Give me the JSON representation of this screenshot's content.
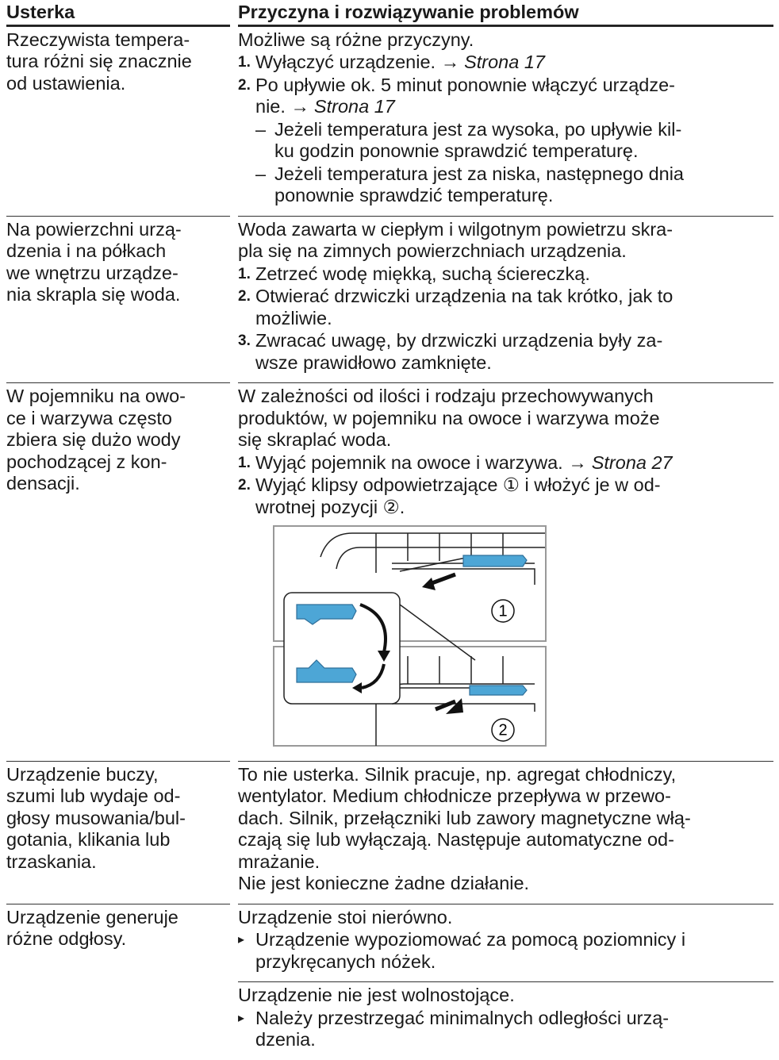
{
  "table": {
    "headers": [
      "Usterka",
      "Przyczyna i rozwiązywanie problemów"
    ],
    "rows": [
      {
        "fault": [
          "Rzeczywista tempera-",
          "tura różni się znacznie",
          "od ustawienia."
        ],
        "blocks": [
          {
            "items": [
              {
                "lines": [
                  "Możliwe są różne przyczyny."
                ]
              },
              {
                "number": "1.",
                "lines": [
                  {
                    "text": "Wyłączyć urządzenie. →",
                    "link": "Strona 17"
                  }
                ]
              },
              {
                "number": "2.",
                "lines": [
                  "Po upływie ok. 5 minut ponownie włączyć urządze-",
                  {
                    "text": "nie. →",
                    "link": "Strona 17"
                  }
                ]
              },
              {
                "bullet": "–",
                "lines": [
                  "Jeżeli temperatura jest za wysoka, po upływie kil-",
                  "ku godzin ponownie sprawdzić temperaturę."
                ]
              },
              {
                "bullet": "–",
                "lines": [
                  "Jeżeli temperatura jest za niska, następnego dnia",
                  "ponownie sprawdzić temperaturę."
                ]
              }
            ]
          }
        ]
      },
      {
        "fault": [
          "Na powierzchni urzą-",
          "dzenia i na półkach",
          "we wnętrzu urządze-",
          "nia skrapla się woda."
        ],
        "blocks": [
          {
            "items": [
              {
                "lines": [
                  "Woda zawarta w ciepłym i wilgotnym powietrzu skra-",
                  "pla się na zimnych powierzchniach urządzenia."
                ]
              },
              {
                "number": "1.",
                "lines": [
                  "Zetrzeć wodę miękką, suchą ściereczką."
                ]
              },
              {
                "number": "2.",
                "lines": [
                  "Otwierać drzwiczki urządzenia na tak krótko, jak to",
                  "możliwie."
                ]
              },
              {
                "number": "3.",
                "lines": [
                  "Zwracać uwagę, by drzwiczki urządzenia były za-",
                  "wsze prawidłowo zamknięte."
                ]
              }
            ]
          }
        ]
      },
      {
        "fault": [
          "W pojemniku na owo-",
          "ce i warzywa często",
          "zbiera się dużo wody",
          "pochodzącej z kon-",
          "densacji."
        ],
        "blocks": [
          {
            "items": [
              {
                "lines": [
                  "W zależności od ilości i rodzaju przechowywanych",
                  "produktów, w pojemniku na owoce i warzywa może",
                  "się skraplać woda."
                ]
              },
              {
                "number": "1.",
                "lines": [
                  {
                    "text": "Wyjąć pojemnik na owoce i warzywa. →",
                    "link": "Strona 27"
                  }
                ]
              },
              {
                "number": "2.",
                "lines": [
                  "Wyjąć klipsy odpowietrzające ① i włożyć je w od-",
                  "wrotnej pozycji ②."
                ]
              }
            ],
            "figure": {
              "labels": [
                "1",
                "2"
              ]
            }
          }
        ]
      },
      {
        "fault": [
          "Urządzenie buczy,",
          "szumi lub wydaje od-",
          "głosy musowania/bul-",
          "gotania, klikania lub",
          "trzaskania."
        ],
        "blocks": [
          {
            "items": [
              {
                "lines": [
                  "To nie usterka. Silnik pracuje, np. agregat chłodniczy,",
                  "wentylator. Medium chłodnicze przepływa w przewo-",
                  "dach. Silnik, przełączniki lub zawory magnetyczne włą-",
                  "czają się lub wyłączają. Następuje automatyczne od-",
                  "mrażanie.",
                  "Nie jest konieczne żadne działanie."
                ]
              }
            ]
          }
        ]
      },
      {
        "fault": [
          "Urządzenie generuje",
          "różne odgłosy."
        ],
        "blocks": [
          {
            "items": [
              {
                "lines": [
                  "Urządzenie stoi nierówno."
                ]
              },
              {
                "arrow": "▸",
                "lines": [
                  "Urządzenie wypoziomować za pomocą poziomnicy i",
                  "przykręcanych nóżek."
                ]
              }
            ]
          },
          {
            "items": [
              {
                "lines": [
                  "Urządzenie nie jest wolnostojące."
                ]
              },
              {
                "arrow": "▸",
                "lines": [
                  "Należy przestrzegać minimalnych odległości urzą-",
                  "dzenia."
                ]
              }
            ]
          }
        ]
      }
    ]
  }
}
